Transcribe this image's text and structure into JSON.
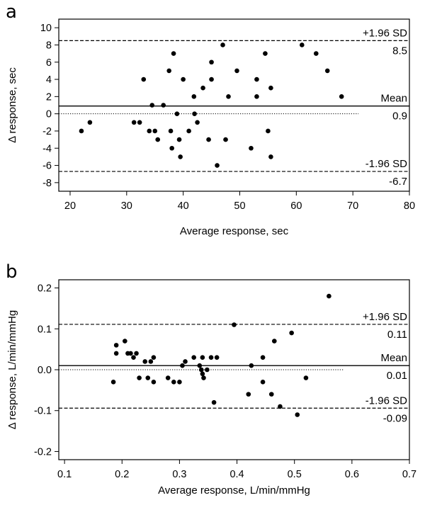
{
  "chart_data": [
    {
      "type": "scatter",
      "panel_label": "a",
      "xlabel": "Average response, sec",
      "ylabel": "Δ response, sec",
      "xlim": [
        18,
        80
      ],
      "ylim": [
        -9,
        11
      ],
      "x_ticks": [
        20,
        30,
        40,
        50,
        60,
        70,
        80
      ],
      "x_tick_labels": [
        "20",
        "30",
        "40",
        "50",
        "60",
        "70",
        "80"
      ],
      "y_ticks": [
        -8,
        -6,
        -4,
        -2,
        0,
        2,
        4,
        6,
        8,
        10
      ],
      "y_tick_labels": [
        "-8",
        "-6",
        "-4",
        "-2",
        "0",
        "2",
        "4",
        "6",
        "8",
        "10"
      ],
      "zero_line_xmax": 71,
      "reference_lines": [
        {
          "kind": "upper",
          "value": 8.5,
          "label": "+1.96 SD",
          "value_label": "8.5"
        },
        {
          "kind": "mean",
          "value": 0.9,
          "label": "Mean",
          "value_label": "0.9"
        },
        {
          "kind": "lower",
          "value": -6.7,
          "label": "-1.96 SD",
          "value_label": "-6.7"
        }
      ],
      "points": [
        [
          22.0,
          -2
        ],
        [
          23.5,
          -1
        ],
        [
          31.3,
          -1
        ],
        [
          32.3,
          -1
        ],
        [
          33.0,
          4
        ],
        [
          34.0,
          -2
        ],
        [
          34.5,
          1
        ],
        [
          35.0,
          -2
        ],
        [
          35.5,
          -3
        ],
        [
          36.5,
          1
        ],
        [
          37.5,
          5
        ],
        [
          37.8,
          -2
        ],
        [
          38.0,
          -4
        ],
        [
          38.3,
          7
        ],
        [
          38.9,
          0
        ],
        [
          39.3,
          -3
        ],
        [
          39.5,
          -5
        ],
        [
          40.0,
          4
        ],
        [
          41.0,
          -2
        ],
        [
          41.9,
          2
        ],
        [
          42.0,
          0
        ],
        [
          42.5,
          -1
        ],
        [
          43.5,
          3
        ],
        [
          44.5,
          -3
        ],
        [
          45.0,
          4
        ],
        [
          45.0,
          6
        ],
        [
          46.0,
          -6
        ],
        [
          47.0,
          8
        ],
        [
          47.5,
          -3
        ],
        [
          48.0,
          2
        ],
        [
          49.5,
          5
        ],
        [
          52.0,
          -4
        ],
        [
          53.0,
          2
        ],
        [
          53.0,
          4
        ],
        [
          54.5,
          7
        ],
        [
          55.0,
          -2
        ],
        [
          55.5,
          3
        ],
        [
          55.5,
          -5
        ],
        [
          61.0,
          8
        ],
        [
          63.5,
          7
        ],
        [
          65.5,
          5
        ],
        [
          68.0,
          2
        ]
      ]
    },
    {
      "type": "scatter",
      "panel_label": "b",
      "xlabel": "Average response, L/min/mmHg",
      "ylabel": "Δ response, L/min/mmHg",
      "xlim": [
        0.09,
        0.7
      ],
      "ylim": [
        -0.22,
        0.22
      ],
      "x_ticks": [
        0.1,
        0.2,
        0.3,
        0.4,
        0.5,
        0.6,
        0.7
      ],
      "x_tick_labels": [
        "0.1",
        "0.2",
        "0.3",
        "0.4",
        "0.5",
        "0.6",
        "0.7"
      ],
      "y_ticks": [
        -0.2,
        -0.1,
        0.0,
        0.1,
        0.2
      ],
      "y_tick_labels": [
        "-0.2",
        "-0.1",
        "0.0",
        "0.1",
        "0.2"
      ],
      "zero_line_xmax": 0.585,
      "reference_lines": [
        {
          "kind": "upper",
          "value": 0.111,
          "label": "+1.96 SD",
          "value_label": "0.11"
        },
        {
          "kind": "mean",
          "value": 0.01,
          "label": "Mean",
          "value_label": "0.01"
        },
        {
          "kind": "lower",
          "value": -0.094,
          "label": "-1.96 SD",
          "value_label": "-0.09"
        }
      ],
      "points": [
        [
          0.185,
          -0.03
        ],
        [
          0.19,
          0.06
        ],
        [
          0.19,
          0.04
        ],
        [
          0.205,
          0.07
        ],
        [
          0.21,
          0.04
        ],
        [
          0.215,
          0.04
        ],
        [
          0.22,
          0.03
        ],
        [
          0.225,
          0.04
        ],
        [
          0.23,
          -0.02
        ],
        [
          0.24,
          0.02
        ],
        [
          0.245,
          -0.02
        ],
        [
          0.25,
          0.02
        ],
        [
          0.255,
          0.03
        ],
        [
          0.255,
          -0.03
        ],
        [
          0.28,
          -0.02
        ],
        [
          0.29,
          -0.03
        ],
        [
          0.3,
          -0.03
        ],
        [
          0.305,
          0.01
        ],
        [
          0.31,
          0.02
        ],
        [
          0.325,
          0.03
        ],
        [
          0.335,
          0.01
        ],
        [
          0.338,
          0.0
        ],
        [
          0.34,
          0.03
        ],
        [
          0.34,
          -0.01
        ],
        [
          0.342,
          -0.02
        ],
        [
          0.348,
          0.0
        ],
        [
          0.355,
          0.03
        ],
        [
          0.36,
          -0.08
        ],
        [
          0.365,
          0.03
        ],
        [
          0.395,
          0.11
        ],
        [
          0.42,
          -0.06
        ],
        [
          0.425,
          0.01
        ],
        [
          0.445,
          0.03
        ],
        [
          0.445,
          -0.03
        ],
        [
          0.46,
          -0.06
        ],
        [
          0.465,
          0.07
        ],
        [
          0.475,
          -0.09
        ],
        [
          0.495,
          0.09
        ],
        [
          0.505,
          -0.11
        ],
        [
          0.52,
          -0.02
        ],
        [
          0.56,
          0.18
        ]
      ]
    }
  ]
}
